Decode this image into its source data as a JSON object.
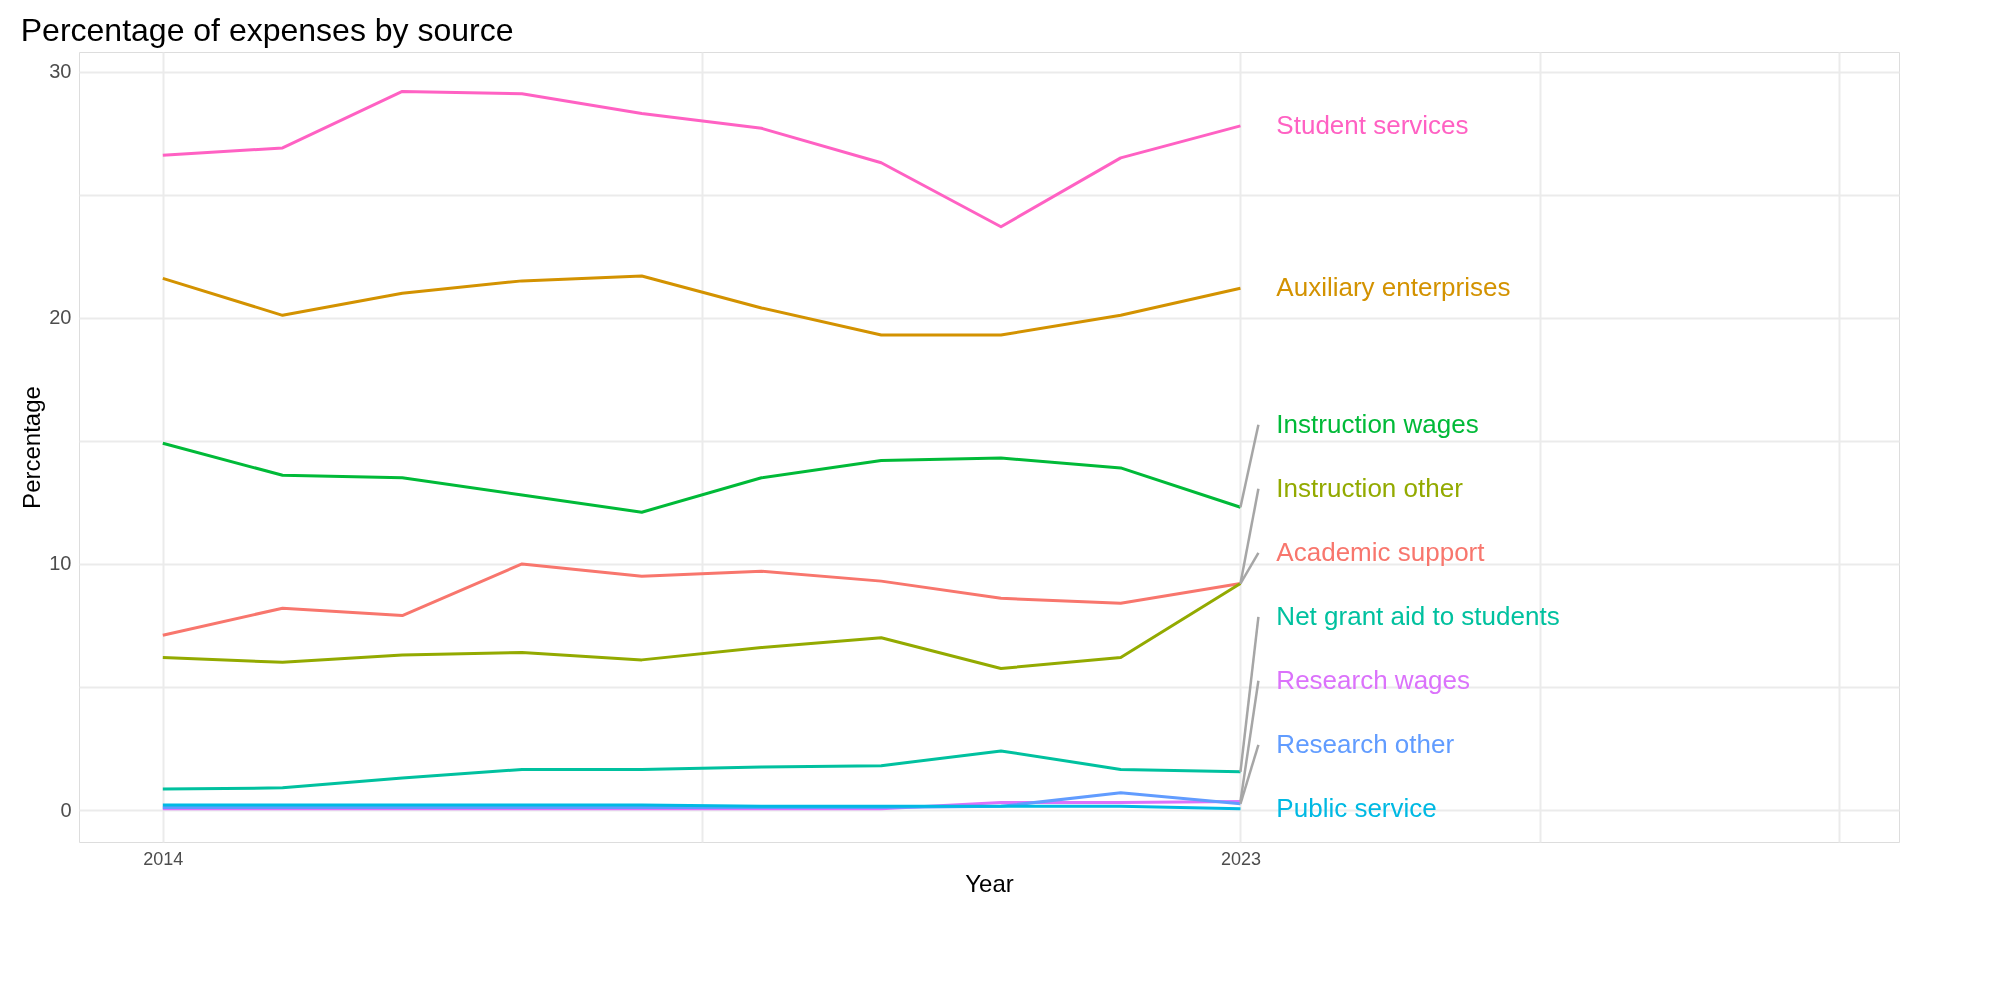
{
  "chart_data": {
    "type": "line",
    "title": "Percentage of expenses by source",
    "xlabel": "Year",
    "ylabel": "Percentage",
    "x": [
      2014,
      2015,
      2016,
      2017,
      2018,
      2019,
      2020,
      2021,
      2022,
      2023
    ],
    "xlim": [
      2013.3,
      2028.5
    ],
    "xticks": [
      2014,
      {
        "value": 2018.5,
        "label": null
      },
      2023,
      {
        "value": 2025.5,
        "label": null
      },
      {
        "value": 2028,
        "label": null
      }
    ],
    "ylim": [
      -1.3,
      30.8
    ],
    "yticks": [
      0,
      {
        "value": 5,
        "label": null
      },
      10,
      {
        "value": 15,
        "label": null
      },
      20,
      {
        "value": 25,
        "label": null
      },
      30
    ],
    "grid": true,
    "legend": false,
    "marker": "none",
    "line_style": "solid",
    "series": [
      {
        "name": "Student services",
        "color": "#ff61c3",
        "values": [
          26.6,
          26.9,
          29.2,
          29.1,
          28.3,
          27.7,
          26.3,
          23.7,
          26.5,
          27.8
        ]
      },
      {
        "name": "Auxiliary enterprises",
        "color": "#d39200",
        "values": [
          21.6,
          20.1,
          21.0,
          21.5,
          21.7,
          20.4,
          19.3,
          19.3,
          20.1,
          21.2
        ]
      },
      {
        "name": "Instruction wages",
        "color": "#00ba38",
        "values": [
          14.9,
          13.6,
          13.5,
          12.8,
          12.1,
          13.5,
          14.2,
          14.3,
          13.9,
          12.3
        ]
      },
      {
        "name": "Academic support",
        "color": "#f8766d",
        "values": [
          7.1,
          8.2,
          7.9,
          10.0,
          9.5,
          9.7,
          9.3,
          8.6,
          8.4,
          9.2
        ]
      },
      {
        "name": "Instruction other",
        "color": "#93aa00",
        "values": [
          6.2,
          6.0,
          6.3,
          6.4,
          6.1,
          6.6,
          7.0,
          5.75,
          6.2,
          9.2
        ]
      },
      {
        "name": "Net grant aid to students",
        "color": "#00c19f",
        "values": [
          0.85,
          0.9,
          1.3,
          1.65,
          1.65,
          1.75,
          1.8,
          2.4,
          1.65,
          1.55
        ]
      },
      {
        "name": "Research wages",
        "color": "#db72fb",
        "values": [
          0.05,
          0.05,
          0.05,
          0.05,
          0.05,
          0.05,
          0.05,
          0.3,
          0.3,
          0.35
        ]
      },
      {
        "name": "Research other",
        "color": "#619cff",
        "values": [
          0.1,
          0.1,
          0.1,
          0.1,
          0.1,
          0.1,
          0.1,
          0.15,
          0.7,
          0.25
        ]
      },
      {
        "name": "Public service",
        "color": "#00b9e3",
        "values": [
          0.2,
          0.2,
          0.2,
          0.2,
          0.2,
          0.15,
          0.15,
          0.15,
          0.15,
          0.05
        ]
      }
    ]
  }
}
